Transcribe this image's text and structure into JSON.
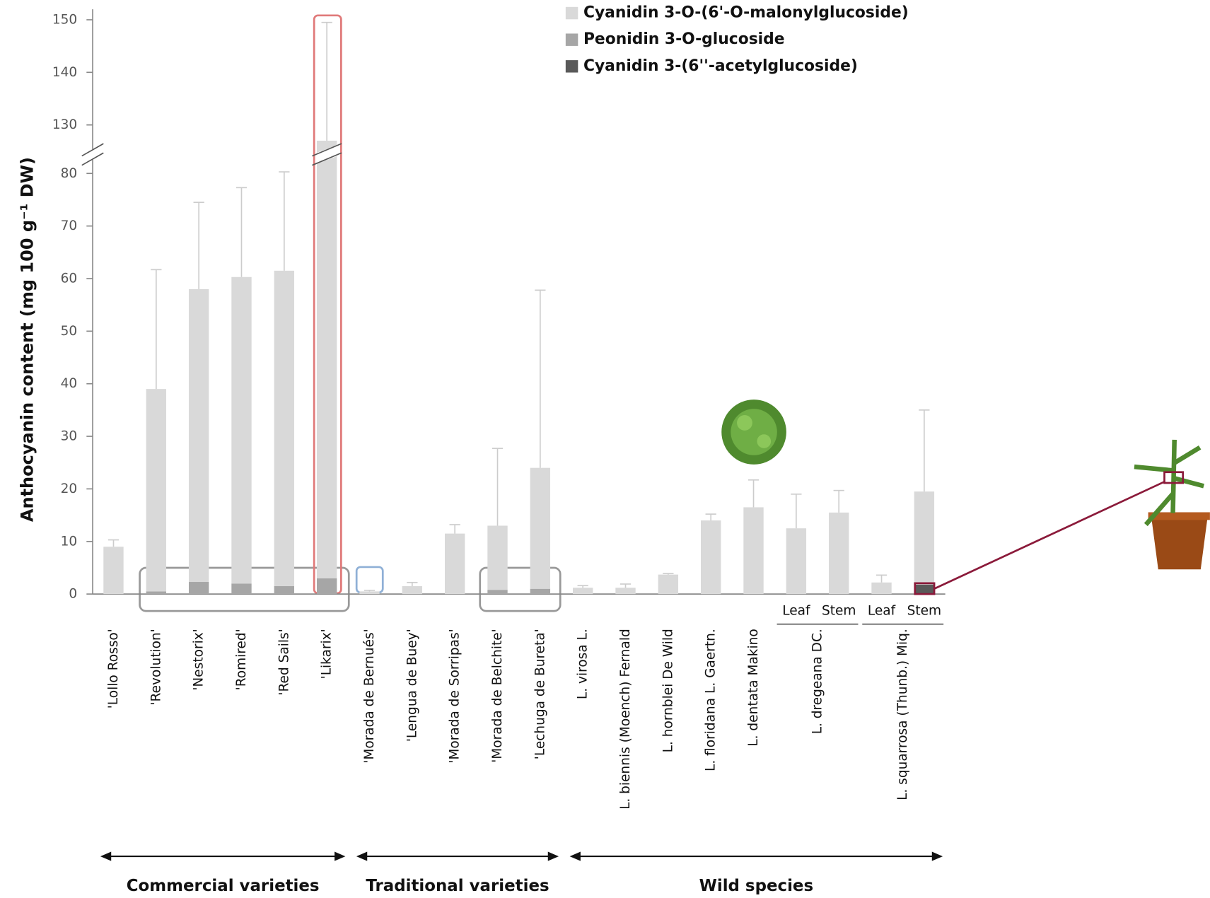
{
  "chart_data": {
    "type": "stacked_bar",
    "y_label": "Anthocyanin content (mg 100 g⁻¹ DW)",
    "categories": [
      "'Lollo Rosso'",
      "'Revolution'",
      "'Nestorix'",
      "'Romired'",
      "'Red Sails'",
      "'Likarix'",
      "'Morada de Bernués'",
      "'Lengua de Buey'",
      "'Morada de Sorripas'",
      "'Morada de Belchite'",
      "'Lechuga de Bureta'",
      "L. virosa L.",
      "L. biennis (Moench) Fernald",
      "L. hornblei De Wild",
      "L. floridana L. Gaertn.",
      "L. dentata Makino",
      null,
      null,
      null,
      null
    ],
    "paired_species": [
      {
        "label": "L. dregeana DC.",
        "parts": [
          "Leaf",
          "Stem"
        ]
      },
      {
        "label": "L. squarrosa (Thunb.) Miq.",
        "parts": [
          "Leaf",
          "Stem"
        ]
      }
    ],
    "series": [
      {
        "name": "Cyanidin 3-O-(6'-O-malonylglucoside)",
        "color": "#d9d9d9",
        "values": [
          9,
          38.5,
          55.7,
          58.3,
          60,
          124,
          0.5,
          1.5,
          11.5,
          12.2,
          23,
          1.2,
          1.2,
          3.7,
          14,
          16.5,
          12.5,
          15.5,
          2.2,
          17.7
        ]
      },
      {
        "name": "Peonidin 3-O-glucoside",
        "color": "#a6a6a6",
        "values": [
          0,
          0.5,
          2.3,
          2,
          1.5,
          3,
          0,
          0,
          0,
          0.8,
          1,
          0,
          0,
          0,
          0,
          0,
          0,
          0,
          0,
          0
        ]
      },
      {
        "name": "Cyanidin 3-(6''-acetylglucoside)",
        "color": "#595959",
        "values": [
          0,
          0,
          0,
          0,
          0,
          0,
          0,
          0,
          0,
          0,
          0,
          0,
          0,
          0,
          0,
          0,
          0,
          0,
          0,
          1.8
        ]
      }
    ],
    "errors": [
      1.3,
      22.7,
      16.5,
      17,
      18.8,
      22.5,
      0.2,
      0.7,
      1.7,
      14.7,
      33.8,
      0.4,
      0.7,
      0.2,
      1.2,
      5.2,
      6.5,
      4.2,
      1.4,
      15.5
    ],
    "ylim": [
      0,
      152
    ],
    "axis_break": [
      82,
      126
    ],
    "yticks": [
      0,
      10,
      20,
      30,
      40,
      50,
      60,
      70,
      80,
      130,
      140,
      150
    ],
    "groups": [
      {
        "label": "Commercial varieties",
        "from": 0,
        "to": 5
      },
      {
        "label": "Traditional varieties",
        "from": 6,
        "to": 10
      },
      {
        "label": "Wild species",
        "from": 11,
        "to": 19
      }
    ]
  }
}
